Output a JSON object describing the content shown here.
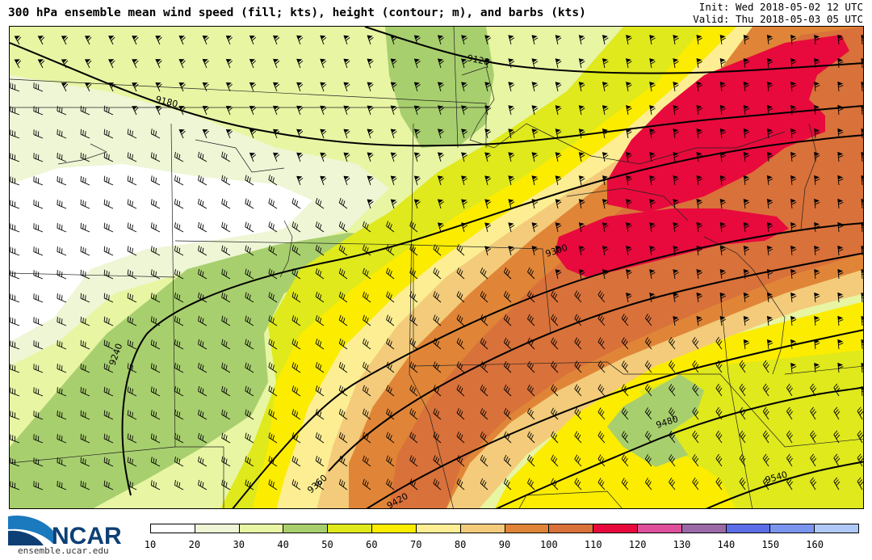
{
  "header": {
    "title": "300 hPa ensemble mean wind speed (fill; kts), height (contour; m), and barbs (kts)",
    "init": "Init: Wed 2018-05-02 12 UTC",
    "valid": "Valid: Thu 2018-05-03 05 UTC"
  },
  "logo": {
    "name": "NCAR",
    "url": "ensemble.ucar.edu"
  },
  "colorbar": {
    "ticks": [
      "10",
      "20",
      "30",
      "40",
      "50",
      "60",
      "70",
      "80",
      "90",
      "100",
      "110",
      "120",
      "130",
      "140",
      "150",
      "160"
    ],
    "colors": [
      "#ffffff",
      "#eef6d6",
      "#e8f5a3",
      "#a8cf6e",
      "#dfe91c",
      "#fbec00",
      "#fdee93",
      "#f3cb7a",
      "#e08537",
      "#d9713a",
      "#e80a3c",
      "#df4f9b",
      "#9b6aa6",
      "#5b6ee8",
      "#7a95f0",
      "#b0c8f8"
    ]
  },
  "map": {
    "contour_labels": [
      "9120",
      "9180",
      "9240",
      "9300",
      "9360",
      "9420",
      "9480",
      "9540"
    ]
  }
}
